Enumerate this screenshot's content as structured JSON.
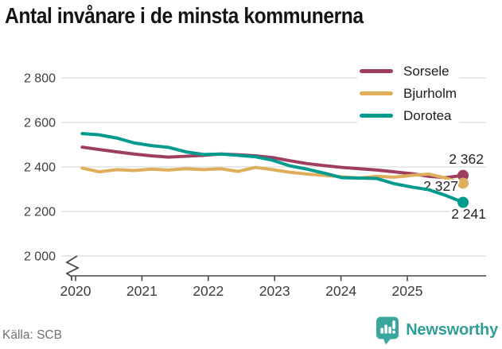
{
  "page": {
    "title": "Antal invånare i de minsta kommunerna",
    "source": "Källa: SCB",
    "brand": {
      "name": "Newsworthy",
      "color": "#2f9e97",
      "icon_color": "#3aa79f"
    }
  },
  "chart_data": {
    "type": "line",
    "title": "Antal invånare i de minsta kommunerna",
    "xlabel": "",
    "ylabel": "",
    "grid": true,
    "legend_position": "top-right",
    "x_axis": {
      "ticks": [
        2020,
        2021,
        2022,
        2023,
        2024,
        2025
      ]
    },
    "y_axis": {
      "ticks": [
        2000,
        2200,
        2400,
        2600,
        2800
      ],
      "tick_labels": [
        "2 000",
        "2 200",
        "2 400",
        "2 600",
        "2 800"
      ],
      "axis_break": true
    },
    "x": [
      2020.1,
      2020.36,
      2020.62,
      2020.88,
      2021.14,
      2021.4,
      2021.66,
      2021.93,
      2022.19,
      2022.45,
      2022.71,
      2022.97,
      2023.23,
      2023.49,
      2023.75,
      2024.01,
      2024.28,
      2024.54,
      2024.8,
      2025.06,
      2025.32,
      2025.58,
      2025.84
    ],
    "series": [
      {
        "name": "Sorsele",
        "color": "#9e3d5d",
        "end_label": "2 362",
        "values": [
          2489,
          2478,
          2468,
          2458,
          2450,
          2444,
          2448,
          2452,
          2458,
          2455,
          2450,
          2442,
          2428,
          2415,
          2406,
          2398,
          2392,
          2386,
          2378,
          2370,
          2358,
          2352,
          2362
        ]
      },
      {
        "name": "Bjurholm",
        "color": "#dfae5a",
        "end_label": "2 327",
        "values": [
          2395,
          2378,
          2388,
          2384,
          2390,
          2386,
          2392,
          2388,
          2392,
          2380,
          2398,
          2388,
          2376,
          2368,
          2362,
          2356,
          2350,
          2358,
          2354,
          2362,
          2368,
          2350,
          2327
        ]
      },
      {
        "name": "Dorotea",
        "color": "#009a8e",
        "end_label": "2 241",
        "values": [
          2550,
          2544,
          2530,
          2508,
          2496,
          2488,
          2468,
          2456,
          2458,
          2452,
          2446,
          2430,
          2405,
          2390,
          2372,
          2352,
          2350,
          2348,
          2325,
          2310,
          2298,
          2272,
          2241
        ]
      }
    ]
  }
}
